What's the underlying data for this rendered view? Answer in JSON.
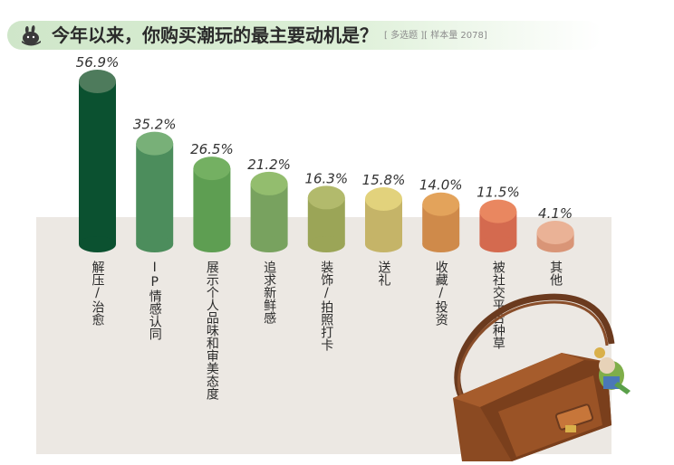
{
  "header": {
    "title": "今年以来，你购买潮玩的最主要动机是？",
    "note": "[ 多选题 ][ 样本量 2078]",
    "icon": "rabbit-head-icon"
  },
  "decoration": {
    "icon": "shoulder-bag-with-figure-keychain-icon"
  },
  "chart_data": {
    "type": "bar",
    "title": "今年以来，你购买潮玩的最主要动机是？",
    "categories": [
      "解压/治愈",
      "IP情感认同",
      "展示个人品味和审美态度",
      "追求新鲜感",
      "装饰/拍照打卡",
      "送礼",
      "收藏/投资",
      "被社交平台种草",
      "其他"
    ],
    "values": [
      56.9,
      35.2,
      26.5,
      21.2,
      16.3,
      15.8,
      14.0,
      11.5,
      4.1
    ],
    "value_labels": [
      "56.9%",
      "35.2%",
      "26.5%",
      "21.2%",
      "16.3%",
      "15.8%",
      "14.0%",
      "11.5%",
      "4.1%"
    ],
    "unit": "%",
    "colors": [
      "#0b5130",
      "#4c8d5c",
      "#5e9e52",
      "#78a25f",
      "#9ba557",
      "#c5b468",
      "#cf8a4a",
      "#d46a4f",
      "#d99577"
    ],
    "top_colors": [
      "#4e7b5c",
      "#78b078",
      "#74b062",
      "#93bd6e",
      "#b2ba6c",
      "#e2d27c",
      "#e3a35b",
      "#e98760",
      "#eab296"
    ],
    "ylim": [
      0,
      60
    ],
    "grid": false,
    "legend": "none"
  }
}
